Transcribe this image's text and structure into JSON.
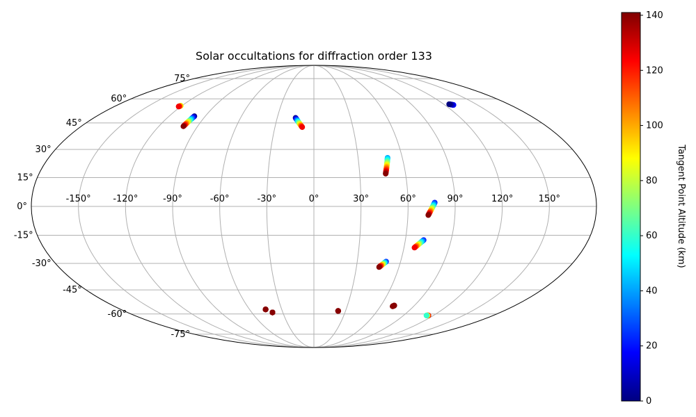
{
  "chart_data": {
    "type": "scatter",
    "projection": "mollweide",
    "title": "Solar occultations for diffraction order 133",
    "colorbar": {
      "label": "Tangent Point Altitude (km)",
      "range": [
        0,
        141
      ],
      "ticks": [
        0,
        20,
        40,
        60,
        80,
        100,
        120,
        140
      ],
      "tick_labels": [
        "0",
        "20",
        "40",
        "60",
        "80",
        "100",
        "120",
        "140"
      ],
      "colormap": "jet"
    },
    "longitude_ticks": [
      {
        "value": -150,
        "label": "-150°"
      },
      {
        "value": -120,
        "label": "-120°"
      },
      {
        "value": -90,
        "label": "-90°"
      },
      {
        "value": -60,
        "label": "-60°"
      },
      {
        "value": -30,
        "label": "-30°"
      },
      {
        "value": 0,
        "label": "0°"
      },
      {
        "value": 30,
        "label": "30°"
      },
      {
        "value": 60,
        "label": "60°"
      },
      {
        "value": 90,
        "label": "90°"
      },
      {
        "value": 120,
        "label": "120°"
      },
      {
        "value": 150,
        "label": "150°"
      }
    ],
    "latitude_ticks": [
      {
        "value": 75,
        "label": "75°"
      },
      {
        "value": 60,
        "label": "60°"
      },
      {
        "value": 45,
        "label": "45°"
      },
      {
        "value": 30,
        "label": "30°"
      },
      {
        "value": 15,
        "label": "15°"
      },
      {
        "value": 0,
        "label": "0°"
      },
      {
        "value": -15,
        "label": "-15°"
      },
      {
        "value": -30,
        "label": "-30°"
      },
      {
        "value": -45,
        "label": "-45°"
      },
      {
        "value": -60,
        "label": "-60°"
      },
      {
        "value": -75,
        "label": "-75°"
      }
    ],
    "grid": true,
    "tracks": [
      {
        "start": {
          "lon": -121,
          "lat": 55.5,
          "alt": 80
        },
        "end": {
          "lon": -122,
          "lat": 55,
          "alt": 125
        }
      },
      {
        "start": {
          "lon": -99,
          "lat": 49,
          "alt": 0
        },
        "end": {
          "lon": -101,
          "lat": 43,
          "alt": 140
        }
      },
      {
        "start": {
          "lon": -15,
          "lat": 48,
          "alt": 0
        },
        "end": {
          "lon": -9,
          "lat": 42.5,
          "alt": 125
        }
      },
      {
        "start": {
          "lon": 128,
          "lat": 56,
          "alt": 20
        },
        "end": {
          "lon": 125,
          "lat": 56.5,
          "alt": 0
        }
      },
      {
        "start": {
          "lon": 50,
          "lat": 25.5,
          "alt": 40
        },
        "end": {
          "lon": 47,
          "lat": 17,
          "alt": 140
        }
      },
      {
        "start": {
          "lon": 77,
          "lat": 2,
          "alt": 20
        },
        "end": {
          "lon": 73,
          "lat": -4.5,
          "alt": 140
        }
      },
      {
        "start": {
          "lon": 72,
          "lat": -17.5,
          "alt": 20
        },
        "end": {
          "lon": 67,
          "lat": -21.5,
          "alt": 125
        }
      },
      {
        "start": {
          "lon": 50,
          "lat": -29,
          "alt": 20
        },
        "end": {
          "lon": 46,
          "lat": -32,
          "alt": 140
        }
      },
      {
        "start": {
          "lon": -45,
          "lat": -57,
          "alt": 140
        },
        "end": {
          "lon": -45,
          "lat": -57,
          "alt": 140
        }
      },
      {
        "start": {
          "lon": -40,
          "lat": -59,
          "alt": 140
        },
        "end": {
          "lon": -40,
          "lat": -59,
          "alt": 140
        }
      },
      {
        "start": {
          "lon": 23,
          "lat": -58,
          "alt": 140
        },
        "end": {
          "lon": 23,
          "lat": -58,
          "alt": 140
        }
      },
      {
        "start": {
          "lon": 72,
          "lat": -54.5,
          "alt": 140
        },
        "end": {
          "lon": 71,
          "lat": -55,
          "alt": 140
        }
      },
      {
        "start": {
          "lon": 115,
          "lat": -61,
          "alt": 140
        },
        "end": {
          "lon": 113,
          "lat": -61,
          "alt": 60
        }
      }
    ]
  }
}
